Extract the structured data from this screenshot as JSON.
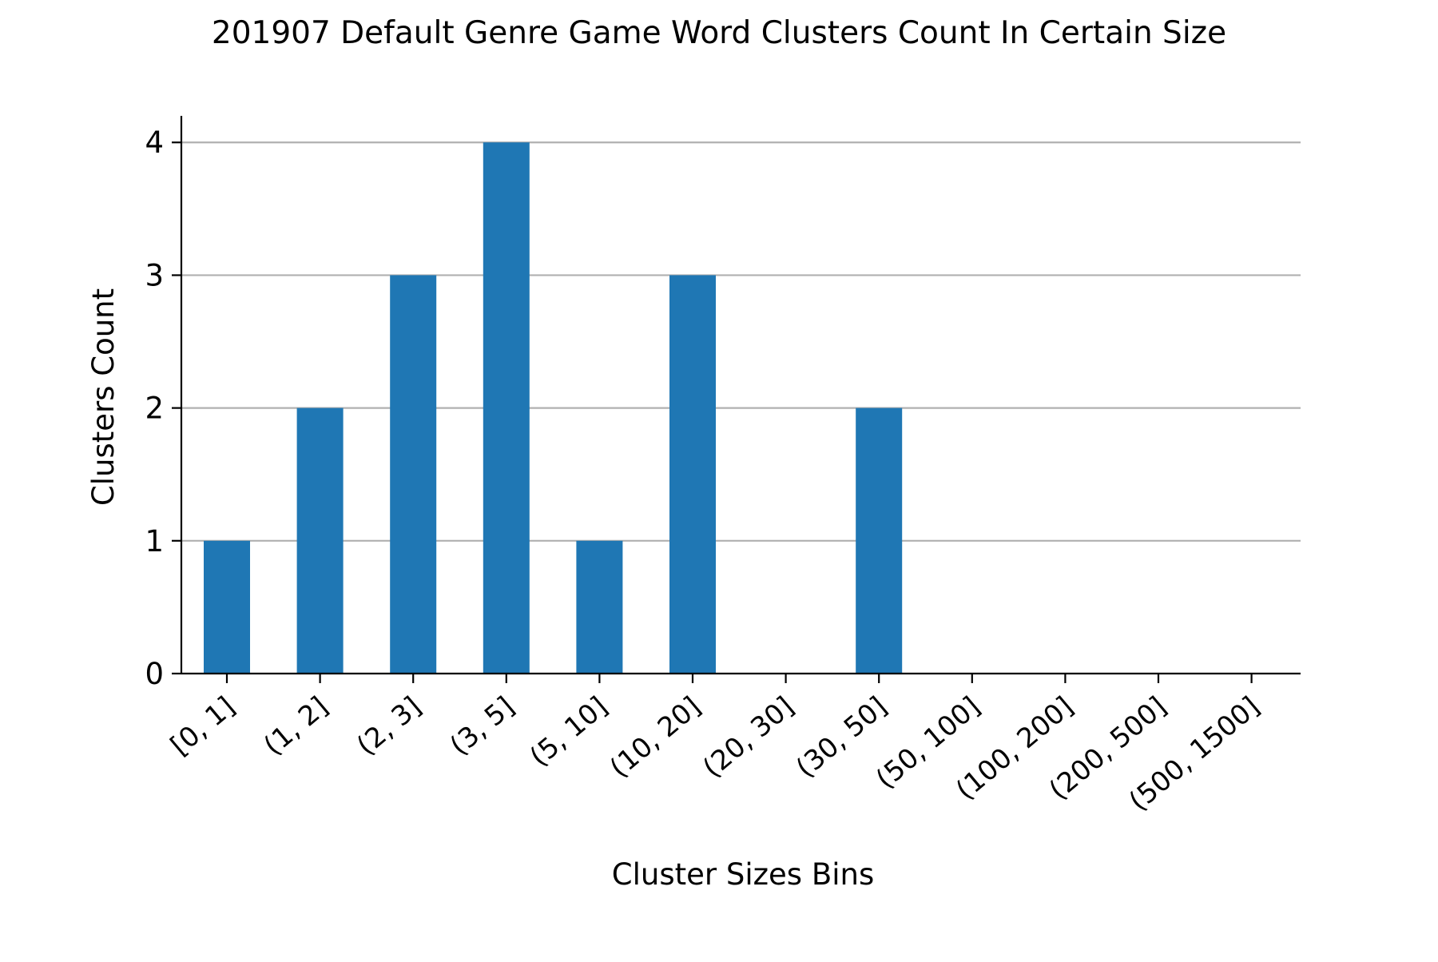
{
  "chart_data": {
    "type": "bar",
    "title": "201907 Default Genre Game Word Clusters Count In Certain Size",
    "xlabel": "Cluster Sizes Bins",
    "ylabel": "Clusters Count",
    "categories": [
      "[0, 1]",
      "(1, 2]",
      "(2, 3]",
      "(3, 5]",
      "(5, 10]",
      "(10, 20]",
      "(20, 30]",
      "(30, 50]",
      "(50, 100]",
      "(100, 200]",
      "(200, 500]",
      "(500, 1500]"
    ],
    "values": [
      1,
      2,
      3,
      4,
      1,
      3,
      0,
      2,
      0,
      0,
      0,
      0
    ],
    "ylim": [
      0,
      4.2
    ],
    "yticks": [
      "0",
      "1",
      "2",
      "3",
      "4"
    ],
    "grid": "horizontal",
    "bar_color": "#1f77b4",
    "grid_color": "#b0b0b0"
  }
}
